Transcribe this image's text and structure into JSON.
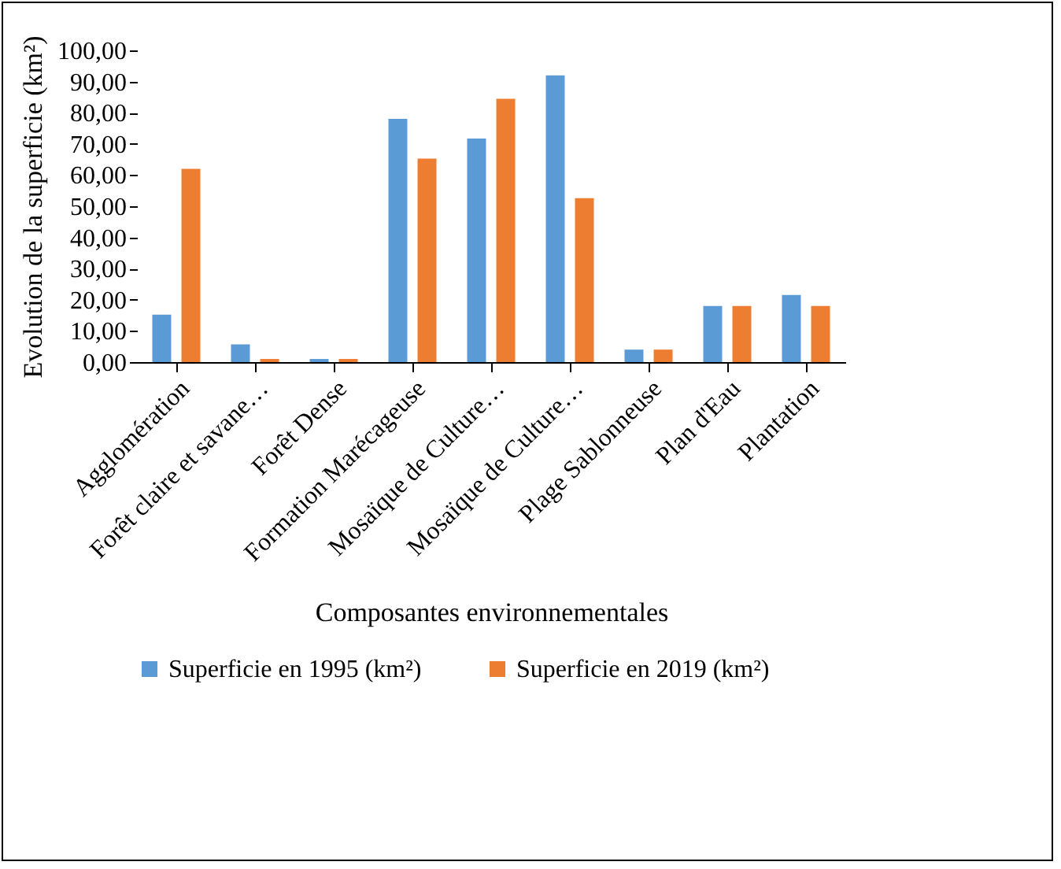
{
  "chart_data": {
    "type": "bar",
    "xlabel": "Composantes environnementales",
    "ylabel": "Evolution de la superficie (km²)",
    "categories": [
      "Agglomération",
      "Forêt claire et savane…",
      "Forêt Dense",
      "Formation Marécageuse",
      "Mosaïque de Culture…",
      "Mosaïque de Culture…",
      "Plage Sablonneuse",
      "Plan d'Eau",
      "Plantation"
    ],
    "series": [
      {
        "name": "Superficie en 1995 (km²)",
        "color": "#5b9bd5",
        "values": [
          15.2,
          5.7,
          1,
          78,
          71.7,
          92,
          4,
          18,
          21.5
        ]
      },
      {
        "name": "Superficie en 2019 (km²)",
        "color": "#ed7d31",
        "values": [
          62,
          1,
          1,
          65.3,
          84.5,
          52.6,
          4,
          18,
          18
        ]
      }
    ],
    "ylim": [
      0,
      100
    ],
    "yticks": [
      {
        "value": 0,
        "label": "0,00"
      },
      {
        "value": 10,
        "label": "10,00"
      },
      {
        "value": 20,
        "label": "20,00"
      },
      {
        "value": 30,
        "label": "30,00"
      },
      {
        "value": 40,
        "label": "40,00"
      },
      {
        "value": 50,
        "label": "50,00"
      },
      {
        "value": 60,
        "label": "60,00"
      },
      {
        "value": 70,
        "label": "70,00"
      },
      {
        "value": 80,
        "label": "80,00"
      },
      {
        "value": 90,
        "label": "90,00"
      },
      {
        "value": 100,
        "label": "100,00"
      }
    ],
    "grid": false,
    "legend": "bottom"
  }
}
